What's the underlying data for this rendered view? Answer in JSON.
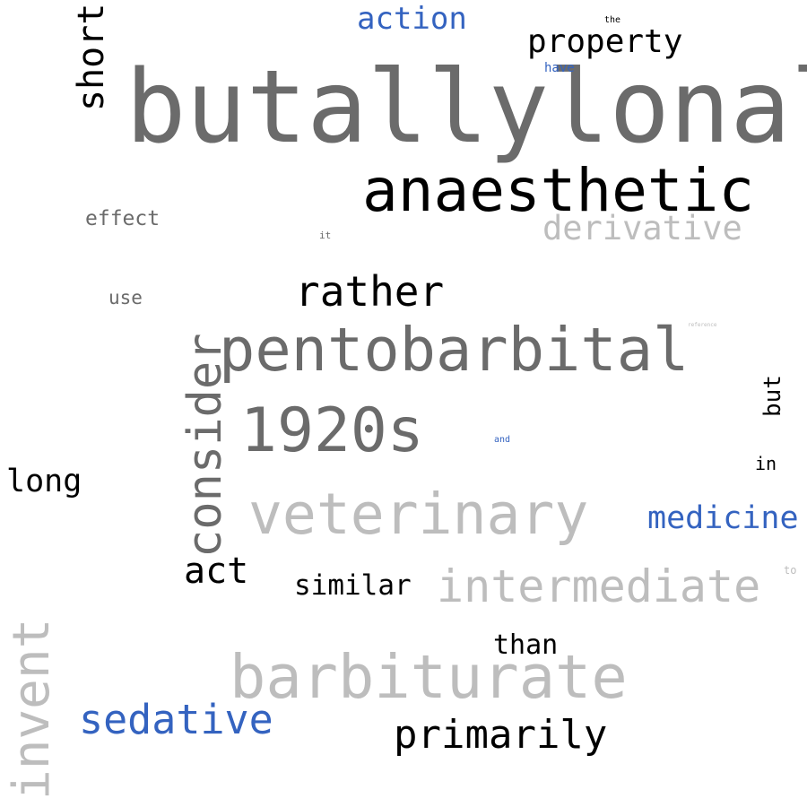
{
  "words": {
    "butallylonal": "butallylonal",
    "anaesthetic": "anaesthetic",
    "pentobarbital": "pentobarbital",
    "s1920": "1920s",
    "veterinary": "veterinary",
    "barbiturate": "barbiturate",
    "intermediate": "intermediate",
    "consider": "consider",
    "invent": "invent",
    "rather": "rather",
    "derivative": "derivative",
    "sedative": "sedative",
    "primarily": "primarily",
    "medicine": "medicine",
    "short": "short",
    "action": "action",
    "property": "property",
    "act": "act",
    "similar": "similar",
    "long": "long",
    "than": "than",
    "effect": "effect",
    "but": "but",
    "use": "use",
    "in": "in",
    "have": "have",
    "it": "it",
    "the": "the",
    "to": "to",
    "and": "and",
    "reference": "reference"
  },
  "colors": {
    "gray": "#6b6b6b",
    "light_gray": "#bdbdbd",
    "black": "#000000",
    "blue": "#3463c0",
    "background": "#ffffff"
  }
}
